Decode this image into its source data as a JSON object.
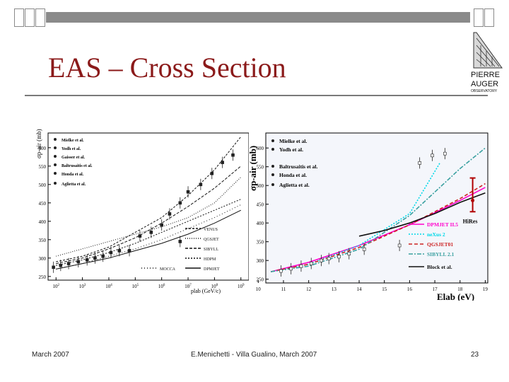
{
  "slide": {
    "title": "EAS – Cross Section",
    "footer_left": "March 2007",
    "footer_center": "E.Menichetti - Villa Gualino, March 2007",
    "page_number": "23",
    "logo_line1": "PIERRE",
    "logo_line2": "AUGER",
    "logo_line3": "OBSERVATORY",
    "title_color": "#8b1a1a",
    "accent_color": "#8b1a1a"
  },
  "chart_data": [
    {
      "type": "scatter",
      "ylabel": "σp-air (mb)",
      "xlabel": "plab (GeV/c)",
      "xscale": "log",
      "xlim": [
        50,
        2000000000.0
      ],
      "ylim": [
        240,
        640
      ],
      "y_ticks": [
        "600",
        "550",
        "500",
        "450",
        "400",
        "350",
        "300",
        "250"
      ],
      "x_ticks": [
        "10^2",
        "10^3",
        "10^4",
        "10^5",
        "10^6",
        "10^7",
        "10^8",
        "10^9"
      ],
      "legend_markers": [
        "Mielke et al.",
        "Yodh et al.",
        "Gaisser et al.",
        "Baltrusaitis et al.",
        "Honda et al.",
        "Aglietta et al."
      ],
      "legend_lines": [
        "VENUS",
        "QGSJET",
        "SIBYLL",
        "HDPM",
        "MOCCA",
        "DPMJET"
      ],
      "series": [
        {
          "name": "DPMJET",
          "x": [
            100,
            1000.0,
            10000.0,
            100000.0,
            1000000.0,
            10000000.0,
            100000000.0,
            1000000000.0
          ],
          "y": [
            290,
            305,
            330,
            370,
            410,
            470,
            540,
            630
          ]
        },
        {
          "name": "MOCCA",
          "x": [
            100,
            1000.0,
            10000.0,
            100000.0,
            1000000.0,
            10000000.0,
            100000000.0,
            1000000000.0
          ],
          "y": [
            305,
            325,
            345,
            365,
            385,
            410,
            450,
            520
          ]
        },
        {
          "name": "HDPM",
          "x": [
            100,
            1000.0,
            10000.0,
            100000.0,
            1000000.0,
            10000000.0,
            100000000.0,
            1000000000.0
          ],
          "y": [
            285,
            300,
            325,
            355,
            395,
            440,
            490,
            550
          ]
        },
        {
          "name": "SIBYLL",
          "x": [
            100,
            1000.0,
            10000.0,
            100000.0,
            1000000.0,
            10000000.0,
            100000000.0,
            1000000000.0
          ],
          "y": [
            280,
            295,
            315,
            340,
            370,
            400,
            430,
            460
          ]
        },
        {
          "name": "QGSJET",
          "x": [
            100,
            1000.0,
            10000.0,
            100000.0,
            1000000.0,
            10000000.0,
            100000000.0,
            1000000000.0
          ],
          "y": [
            270,
            285,
            305,
            325,
            350,
            380,
            410,
            445
          ]
        },
        {
          "name": "VENUS",
          "x": [
            100,
            1000.0,
            10000.0,
            100000.0,
            1000000.0,
            10000000.0,
            100000000.0,
            1000000000.0
          ],
          "y": [
            270,
            285,
            300,
            320,
            340,
            365,
            395,
            430
          ]
        }
      ],
      "points": [
        {
          "x": 80,
          "y": 275
        },
        {
          "x": 150,
          "y": 280
        },
        {
          "x": 300,
          "y": 285
        },
        {
          "x": 700,
          "y": 290
        },
        {
          "x": 1500,
          "y": 295
        },
        {
          "x": 3000,
          "y": 300
        },
        {
          "x": 6000,
          "y": 305
        },
        {
          "x": 12000,
          "y": 315
        },
        {
          "x": 25000,
          "y": 320
        },
        {
          "x": 60000,
          "y": 320
        },
        {
          "x": 150000,
          "y": 360
        },
        {
          "x": 400000,
          "y": 370
        },
        {
          "x": 1000000.0,
          "y": 390
        },
        {
          "x": 2000000.0,
          "y": 420
        },
        {
          "x": 5000000.0,
          "y": 450
        },
        {
          "x": 10000000.0,
          "y": 480
        },
        {
          "x": 30000000.0,
          "y": 500
        },
        {
          "x": 80000000.0,
          "y": 530
        },
        {
          "x": 200000000.0,
          "y": 560
        },
        {
          "x": 500000000.0,
          "y": 580
        },
        {
          "x": 5000000.0,
          "y": 345
        }
      ]
    },
    {
      "type": "scatter",
      "ylabel": "σp-air (mb)",
      "xlabel": "Elab (eV)",
      "xscale": "log",
      "xlim": [
        10.3,
        19.1
      ],
      "ylim": [
        240,
        640
      ],
      "y_ticks": [
        "600",
        "550",
        "500",
        "450",
        "400",
        "350",
        "300",
        "250"
      ],
      "x_ticks": [
        "10",
        "11",
        "12",
        "13",
        "14",
        "15",
        "16",
        "17",
        "18",
        "19"
      ],
      "legend_markers": [
        "Mielke et al.",
        "Yodh et al.",
        "Baltrusaitis et al.",
        "Honda et al.",
        "Aglietta et al."
      ],
      "legend_lines": [
        "DPMJET II.5",
        "neXus 2",
        "QGSJET01",
        "SIBYLL 2.1",
        "Block et al."
      ],
      "annotation": "HiRes",
      "hires_point": {
        "x": 18.5,
        "y": 460,
        "err_low": 430,
        "err_high": 520
      },
      "series": [
        {
          "name": "DPMJET II.5",
          "color": "#ff00cc",
          "x": [
            10.5,
            12,
            14,
            16,
            18,
            19
          ],
          "y": [
            270,
            295,
            340,
            395,
            460,
            495
          ]
        },
        {
          "name": "neXus 2",
          "color": "#00d8e8",
          "x": [
            10.5,
            12,
            14,
            16,
            17.2
          ],
          "y": [
            270,
            290,
            340,
            425,
            560
          ]
        },
        {
          "name": "QGSJET01",
          "color": "#cc2222",
          "x": [
            10.5,
            12,
            14,
            16,
            18,
            19
          ],
          "y": [
            270,
            290,
            335,
            395,
            465,
            505
          ]
        },
        {
          "name": "SIBYLL 2.1",
          "color": "#3aa0a0",
          "x": [
            10.5,
            12,
            14,
            16,
            18,
            19
          ],
          "y": [
            270,
            285,
            330,
            420,
            545,
            600
          ]
        },
        {
          "name": "Block et al.",
          "color": "#111111",
          "x": [
            14,
            15,
            16,
            17,
            18,
            19
          ],
          "y": [
            365,
            380,
            400,
            425,
            455,
            480
          ]
        }
      ],
      "points": [
        {
          "x": 10.9,
          "y": 272
        },
        {
          "x": 11.3,
          "y": 278
        },
        {
          "x": 11.7,
          "y": 285
        },
        {
          "x": 12.1,
          "y": 292
        },
        {
          "x": 12.5,
          "y": 300
        },
        {
          "x": 12.8,
          "y": 305
        },
        {
          "x": 13.2,
          "y": 310
        },
        {
          "x": 13.6,
          "y": 318
        },
        {
          "x": 14.2,
          "y": 330
        },
        {
          "x": 15.6,
          "y": 340
        },
        {
          "x": 16.4,
          "y": 560
        },
        {
          "x": 16.9,
          "y": 580
        },
        {
          "x": 17.4,
          "y": 585
        }
      ]
    }
  ]
}
